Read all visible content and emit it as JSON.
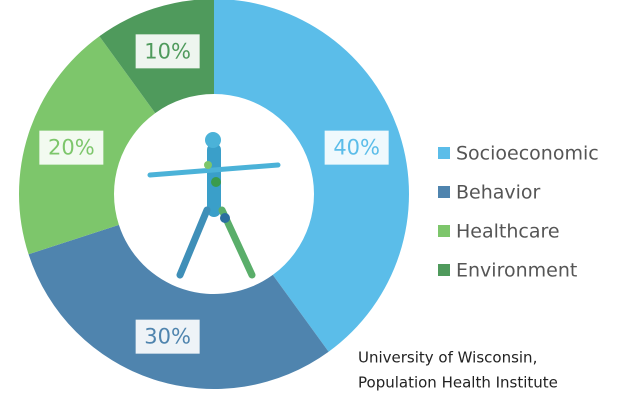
{
  "chart_data": {
    "type": "donut",
    "categories": [
      "Socioeconomic",
      "Behavior",
      "Healthcare",
      "Environment"
    ],
    "values": [
      40,
      30,
      20,
      10
    ],
    "value_labels": [
      "40%",
      "30%",
      "20%",
      "10%"
    ],
    "colors": [
      "#5bbde9",
      "#4f84ae",
      "#7dc66b",
      "#4f9a5c"
    ],
    "legend": "right",
    "source": [
      "University of Wisconsin,",
      "Population Health Institute"
    ]
  }
}
